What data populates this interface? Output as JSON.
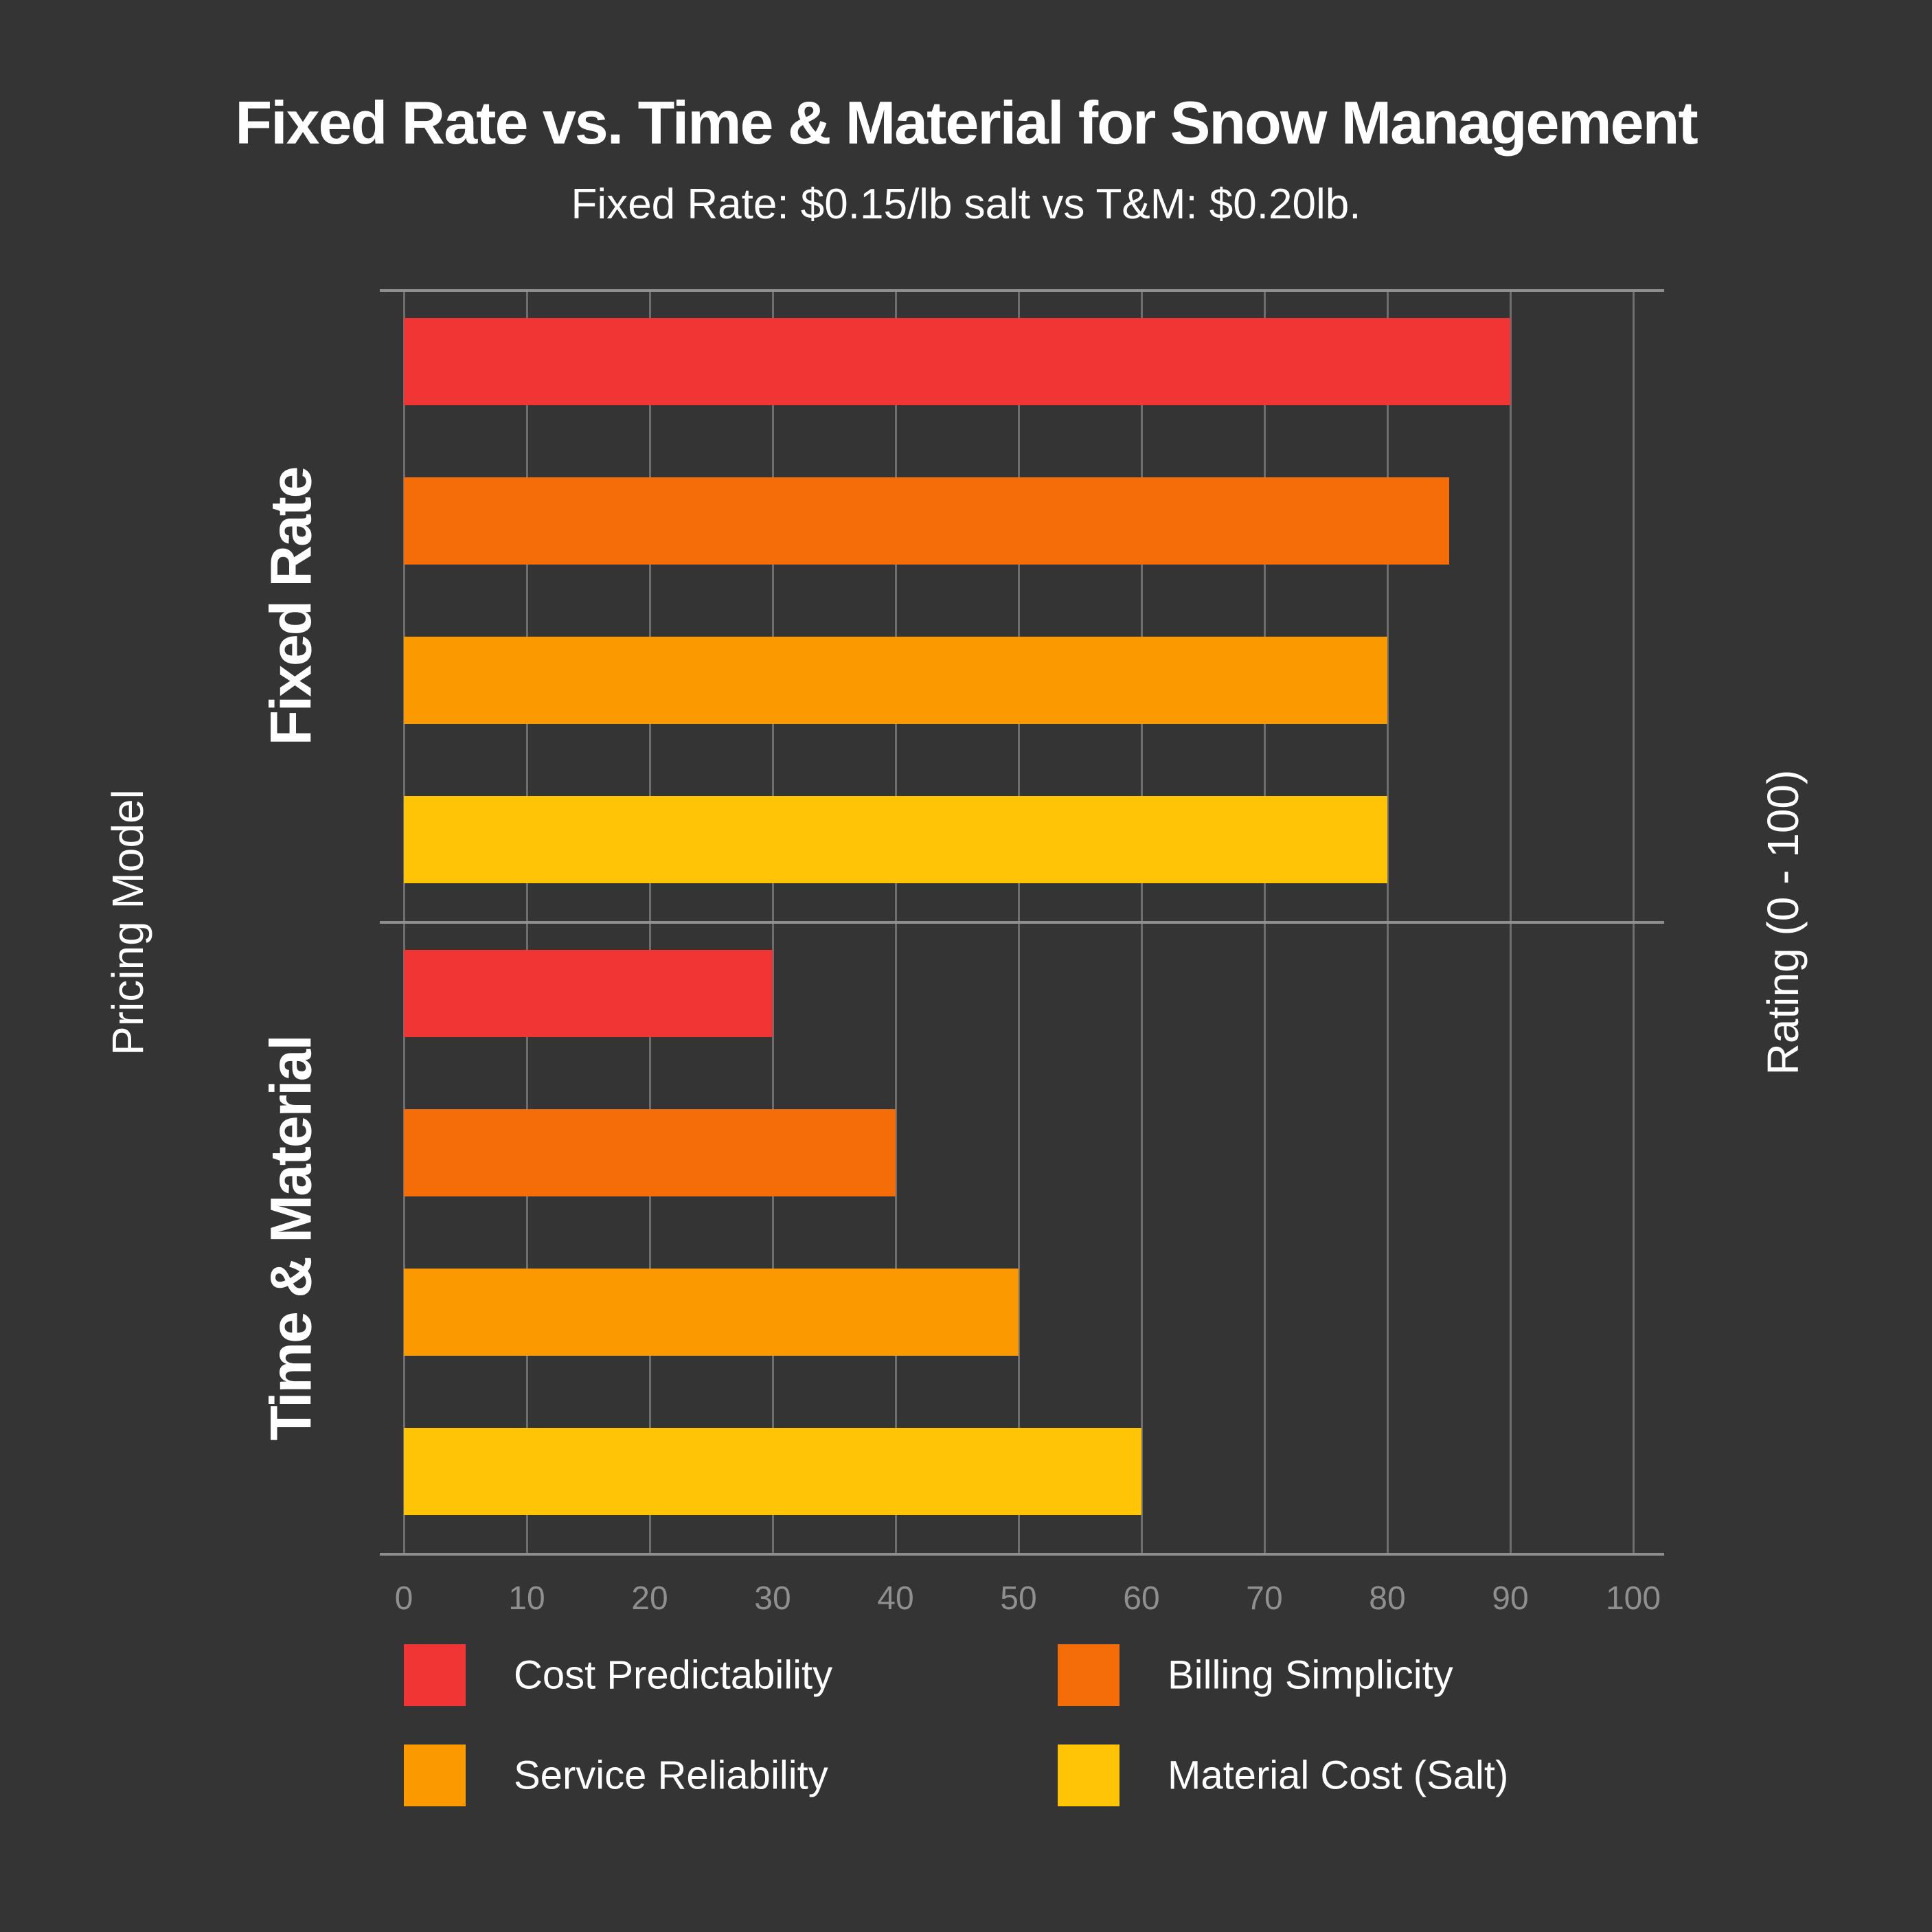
{
  "chart_data": {
    "type": "bar",
    "orientation": "horizontal",
    "title": "Fixed Rate vs. Time & Material for Snow Management",
    "subtitle": "Fixed Rate: $0.15/lb salt vs T&M: $0.20lb.",
    "ylabel": "Pricing Model",
    "value_axis_label": "Rating (0 - 100)",
    "categories": [
      "Fixed Rate",
      "Time & Material"
    ],
    "series": [
      {
        "name": "Cost Predictability",
        "color": "#F13434",
        "values": [
          90,
          30
        ]
      },
      {
        "name": "Billing Simplicity",
        "color": "#F56D08",
        "values": [
          85,
          40
        ]
      },
      {
        "name": "Service Reliability",
        "color": "#FB9A00",
        "values": [
          80,
          50
        ]
      },
      {
        "name": "Material Cost (Salt)",
        "color": "#FFC405",
        "values": [
          80,
          60
        ]
      }
    ],
    "xlim": [
      0,
      100
    ],
    "xticks": [
      0,
      10,
      20,
      30,
      40,
      50,
      60,
      70,
      80,
      90,
      100
    ],
    "grid": true,
    "legend_position": "bottom",
    "style": {
      "background": "#343434",
      "grid_color": "#6E6E6E",
      "spine_color": "#8F8F8F",
      "tick_label_color": "#8F8F8F",
      "text_color": "#FFFFFF"
    }
  }
}
